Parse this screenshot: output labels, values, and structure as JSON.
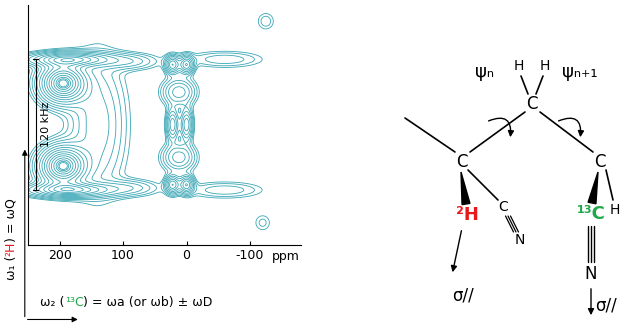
{
  "chart_data": {
    "type": "contour",
    "color": "#3aa6b5",
    "xlim": [
      250,
      -180
    ],
    "xticks": [
      200,
      100,
      0,
      -100
    ],
    "ylim": [
      -110,
      110
    ],
    "tick_labels": "x",
    "x_unit": "ppm",
    "xlabel_parts": [
      {
        "text": "ω₂ (",
        "color": "#000000"
      },
      {
        "text": "¹³C",
        "color": "#1fa84a"
      },
      {
        "text": ") = ωa (or ωb) ± ωD",
        "color": "#000000"
      }
    ],
    "ylabel_parts": [
      {
        "text": "ω₁ (",
        "color": "#000000"
      },
      {
        "text": "²H",
        "color": "#e8191d"
      },
      {
        "text": ") = ωQ",
        "color": "#000000"
      }
    ],
    "annotations": [
      {
        "text": "120 kHz",
        "y_from": -60,
        "y_to": 60
      }
    ],
    "peaks": [
      {
        "x": 195,
        "y": 38,
        "x_width": 22,
        "y_width": 11,
        "height": 1.0
      },
      {
        "x": 195,
        "y": -38,
        "x_width": 22,
        "y_width": 11,
        "height": 1.0
      },
      {
        "x": 185,
        "y": 60,
        "x_width": 40,
        "y_width": 4,
        "height": 0.6
      },
      {
        "x": 185,
        "y": -60,
        "x_width": 40,
        "y_width": 4,
        "height": 0.6
      },
      {
        "x": 140,
        "y": 0,
        "x_width": 28,
        "y_width": 40,
        "height": 0.22
      },
      {
        "x": 90,
        "y": 58,
        "x_width": 30,
        "y_width": 5,
        "height": 0.15
      },
      {
        "x": 90,
        "y": -58,
        "x_width": 30,
        "y_width": 5,
        "height": 0.15
      },
      {
        "x": 22,
        "y": 55,
        "x_width": 7,
        "y_width": 5,
        "height": 0.5
      },
      {
        "x": 22,
        "y": -55,
        "x_width": 7,
        "y_width": 5,
        "height": 0.5
      },
      {
        "x": 0,
        "y": 55,
        "x_width": 7,
        "y_width": 5,
        "height": 0.5
      },
      {
        "x": 0,
        "y": -55,
        "x_width": 7,
        "y_width": 5,
        "height": 0.5
      },
      {
        "x": 12,
        "y": 30,
        "x_width": 16,
        "y_width": 8,
        "height": 0.3
      },
      {
        "x": 12,
        "y": -30,
        "x_width": 16,
        "y_width": 8,
        "height": 0.3
      },
      {
        "x": 22,
        "y": 0,
        "x_width": 6,
        "y_width": 9,
        "height": 0.4
      },
      {
        "x": 0,
        "y": 0,
        "x_width": 6,
        "y_width": 9,
        "height": 0.4
      },
      {
        "x": -60,
        "y": 60,
        "x_width": 40,
        "y_width": 5,
        "height": 0.12
      },
      {
        "x": -60,
        "y": -60,
        "x_width": 40,
        "y_width": 5,
        "height": 0.12
      },
      {
        "x": -125,
        "y": 95,
        "x_width": 10,
        "y_width": 6,
        "height": 0.08
      },
      {
        "x": -120,
        "y": -90,
        "x_width": 10,
        "y_width": 6,
        "height": 0.07
      }
    ],
    "levels": [
      0.04,
      0.06,
      0.09,
      0.13,
      0.18,
      0.25,
      0.33,
      0.42,
      0.52,
      0.62,
      0.72,
      0.82,
      0.9,
      0.95,
      0.98
    ]
  },
  "diagram": {
    "psi_n": "ψₙ",
    "psi_n1": "ψₙ₊₁",
    "carbon": "C",
    "hydrogen": "H",
    "deuterium": {
      "text": "²H",
      "color": "#e8191d"
    },
    "label_13c": {
      "text": "¹³C",
      "color": "#1fa84a"
    },
    "nitrogen": "N",
    "sigma": "σ//"
  }
}
